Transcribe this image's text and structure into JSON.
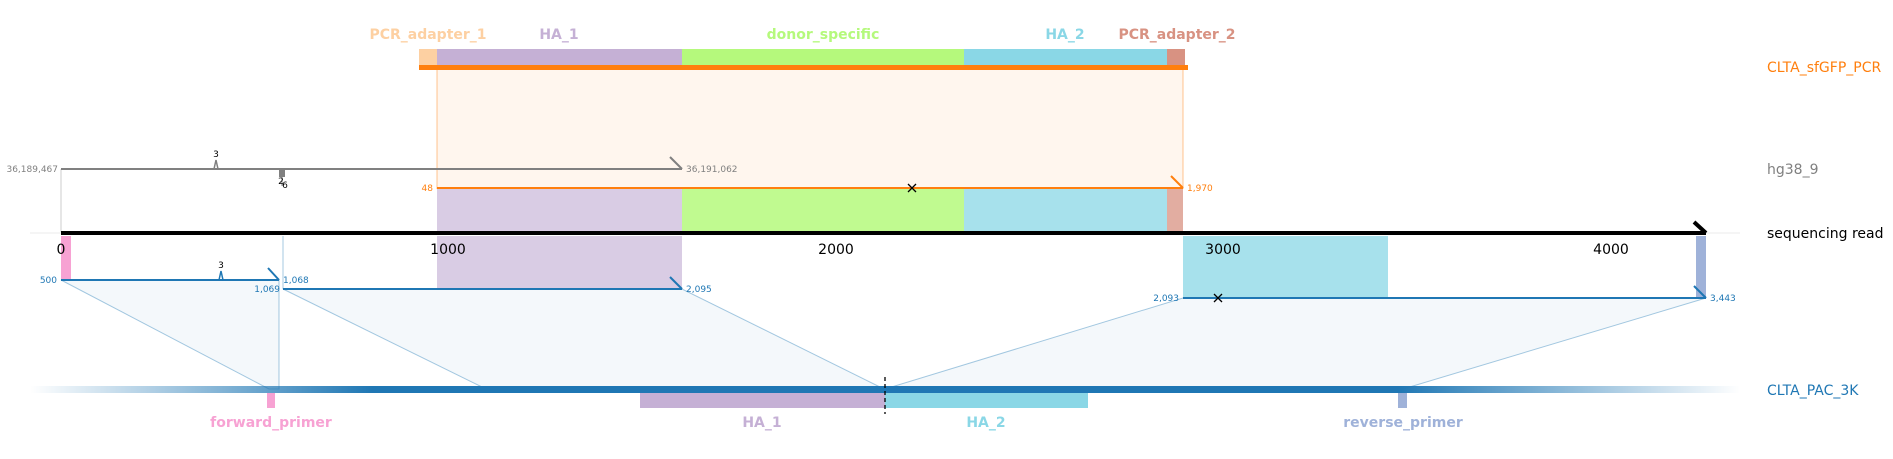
{
  "targets": {
    "pcr": {
      "name": "CLTA_sfGFP_PCR",
      "color": "#ff7f0e"
    },
    "genome": {
      "name": "hg38_9",
      "color": "#808080"
    },
    "read": {
      "name": "sequencing read",
      "color": "#000000"
    },
    "donor": {
      "name": "CLTA_PAC_3K",
      "color": "#1f77b4"
    }
  },
  "pcr_features": [
    {
      "name": "PCR_adapter_1",
      "color": "#fdd0a2"
    },
    {
      "name": "HA_1",
      "color": "#c5b0d5"
    },
    {
      "name": "donor_specific",
      "color": "#b5f97c"
    },
    {
      "name": "HA_2",
      "color": "#8ad7e6"
    },
    {
      "name": "PCR_adapter_2",
      "color": "#d89282"
    }
  ],
  "donor_features": [
    {
      "name": "forward_primer",
      "color": "#f7a2d3"
    },
    {
      "name": "HA_1",
      "color": "#c5b0d5"
    },
    {
      "name": "HA_2",
      "color": "#8ad7e6"
    },
    {
      "name": "reverse_primer",
      "color": "#9fb2d9"
    }
  ],
  "read_axis": {
    "ticks": [
      "0",
      "1000",
      "2000",
      "3000",
      "4000"
    ]
  },
  "genome_alignment": {
    "start_label": "36,189,467",
    "end_label": "36,191,062",
    "indel_top": "3",
    "indel_a": "2",
    "indel_b": "6"
  },
  "pcr_alignment": {
    "start_label": "48",
    "end_label": "1,970"
  },
  "donor_alignment_1": {
    "start_label": "500",
    "end_label": "1,068",
    "indel": "3"
  },
  "donor_alignment_2": {
    "start_label": "1,069",
    "end_label": "2,095"
  },
  "donor_alignment_3": {
    "start_label": "2,093",
    "end_label": "3,443"
  }
}
